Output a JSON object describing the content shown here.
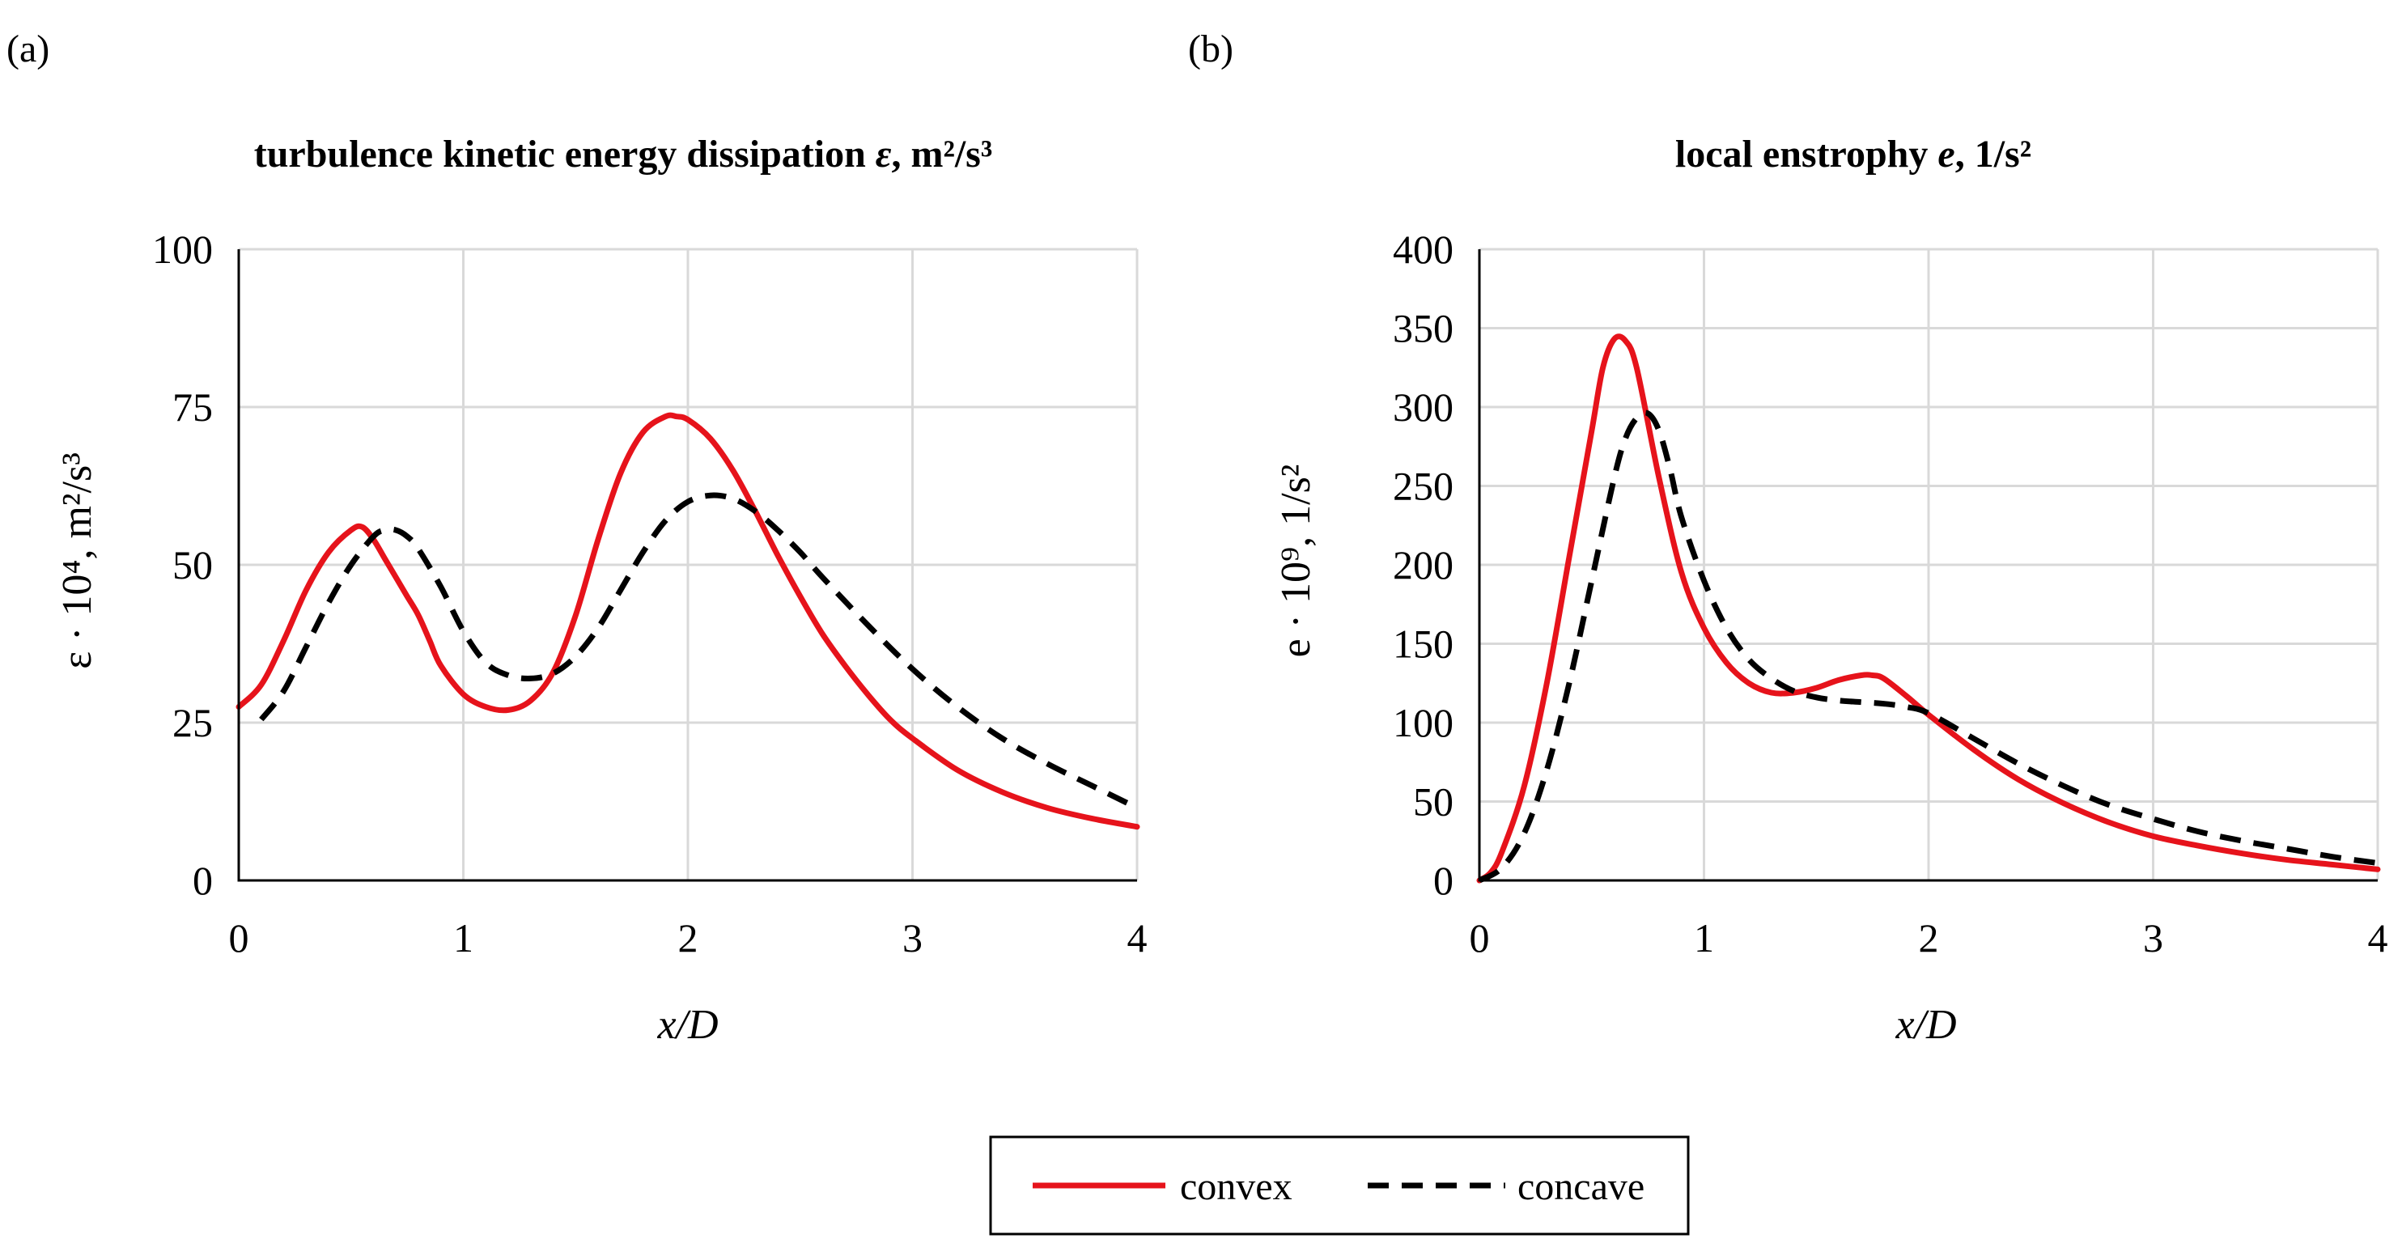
{
  "chart_data": [
    {
      "type": "line",
      "panel_label": "(a)",
      "title": "turbulence kinetic energy dissipation",
      "title_symbol": "ε",
      "title_unit": ", m²/s³",
      "ylabel": "ε · 10⁴, m²/s³",
      "xlabel": "x/D",
      "xlim": [
        0,
        4
      ],
      "ylim": [
        0,
        100
      ],
      "xticks": [
        0,
        1,
        2,
        3,
        4
      ],
      "yticks": [
        0,
        25,
        50,
        75,
        100
      ],
      "grid": true,
      "series": [
        {
          "name": "convex",
          "color": "#e6131b",
          "x": [
            0,
            0.1,
            0.2,
            0.3,
            0.4,
            0.5,
            0.55,
            0.6,
            0.65,
            0.7,
            0.75,
            0.8,
            0.85,
            0.9,
            1.0,
            1.1,
            1.2,
            1.3,
            1.4,
            1.5,
            1.6,
            1.7,
            1.8,
            1.9,
            1.95,
            2.0,
            2.1,
            2.2,
            2.3,
            2.4,
            2.5,
            2.6,
            2.7,
            2.8,
            2.9,
            3.0,
            3.2,
            3.4,
            3.6,
            3.8,
            4.0
          ],
          "y": [
            27.5,
            31,
            38,
            46,
            52,
            55.5,
            56,
            54,
            51,
            48,
            45,
            42,
            38,
            34,
            29.5,
            27.5,
            27,
            28.5,
            33,
            42,
            54,
            64.5,
            71,
            73.5,
            73.5,
            73,
            70,
            65,
            58.5,
            51.5,
            45,
            39,
            34,
            29.5,
            25.5,
            22.5,
            17.5,
            14,
            11.5,
            9.8,
            8.5
          ]
        },
        {
          "name": "concave",
          "color": "#000000",
          "x": [
            0.1,
            0.2,
            0.3,
            0.4,
            0.5,
            0.6,
            0.65,
            0.7,
            0.75,
            0.8,
            0.9,
            1.0,
            1.1,
            1.2,
            1.3,
            1.4,
            1.5,
            1.6,
            1.7,
            1.8,
            1.9,
            2.0,
            2.1,
            2.2,
            2.3,
            2.4,
            2.5,
            2.6,
            2.8,
            3.0,
            3.2,
            3.4,
            3.6,
            3.8,
            4.0
          ],
          "y": [
            25.5,
            30,
            37,
            44,
            50,
            54.5,
            55.5,
            55.5,
            54.5,
            52.5,
            46.5,
            39.5,
            34.5,
            32.5,
            32,
            32.8,
            35.5,
            40,
            46,
            52,
            57,
            60,
            61,
            60.5,
            58.5,
            55.5,
            52,
            48,
            40.5,
            33.5,
            27.5,
            22.5,
            18.5,
            15,
            11.5
          ]
        }
      ]
    },
    {
      "type": "line",
      "panel_label": "(b)",
      "title": "local enstrophy",
      "title_symbol": "e",
      "title_unit": ", 1/s²",
      "ylabel": "e · 10⁹, 1/s²",
      "xlabel": "x/D",
      "xlim": [
        0,
        4
      ],
      "ylim": [
        0,
        400
      ],
      "xticks": [
        0,
        1,
        2,
        3,
        4
      ],
      "yticks": [
        0,
        50,
        100,
        150,
        200,
        250,
        300,
        350,
        400
      ],
      "grid": true,
      "series": [
        {
          "name": "convex",
          "color": "#e6131b",
          "x": [
            0,
            0.05,
            0.1,
            0.2,
            0.3,
            0.4,
            0.5,
            0.55,
            0.6,
            0.65,
            0.7,
            0.8,
            0.9,
            1.0,
            1.1,
            1.2,
            1.3,
            1.4,
            1.5,
            1.6,
            1.7,
            1.75,
            1.8,
            1.9,
            2.0,
            2.2,
            2.4,
            2.6,
            2.8,
            3.0,
            3.2,
            3.4,
            3.6,
            3.8,
            4.0
          ],
          "y": [
            0,
            5,
            18,
            60,
            125,
            205,
            285,
            325,
            343,
            342,
            325,
            255,
            195,
            160,
            138,
            125,
            119,
            119,
            122,
            127,
            130,
            130,
            128,
            117,
            105,
            83,
            64,
            49,
            37,
            28,
            22,
            17,
            13,
            10,
            7
          ]
        },
        {
          "name": "concave",
          "color": "#000000",
          "x": [
            0,
            0.1,
            0.2,
            0.3,
            0.4,
            0.5,
            0.6,
            0.65,
            0.7,
            0.75,
            0.8,
            0.85,
            0.9,
            1.0,
            1.1,
            1.2,
            1.3,
            1.4,
            1.5,
            1.6,
            1.7,
            1.8,
            1.9,
            2.0,
            2.2,
            2.4,
            2.6,
            2.8,
            3.0,
            3.2,
            3.4,
            3.6,
            3.8,
            4.0
          ],
          "y": [
            0,
            8,
            30,
            70,
            125,
            190,
            255,
            280,
            293,
            296,
            285,
            260,
            230,
            190,
            160,
            140,
            128,
            120,
            116,
            114,
            113,
            112,
            110,
            106,
            90,
            74,
            60,
            48,
            39,
            31,
            25,
            20,
            15,
            11
          ]
        }
      ]
    }
  ],
  "legend": {
    "items": [
      {
        "name": "convex",
        "color": "#e6131b"
      },
      {
        "name": "concave",
        "color": "#000000"
      }
    ]
  }
}
